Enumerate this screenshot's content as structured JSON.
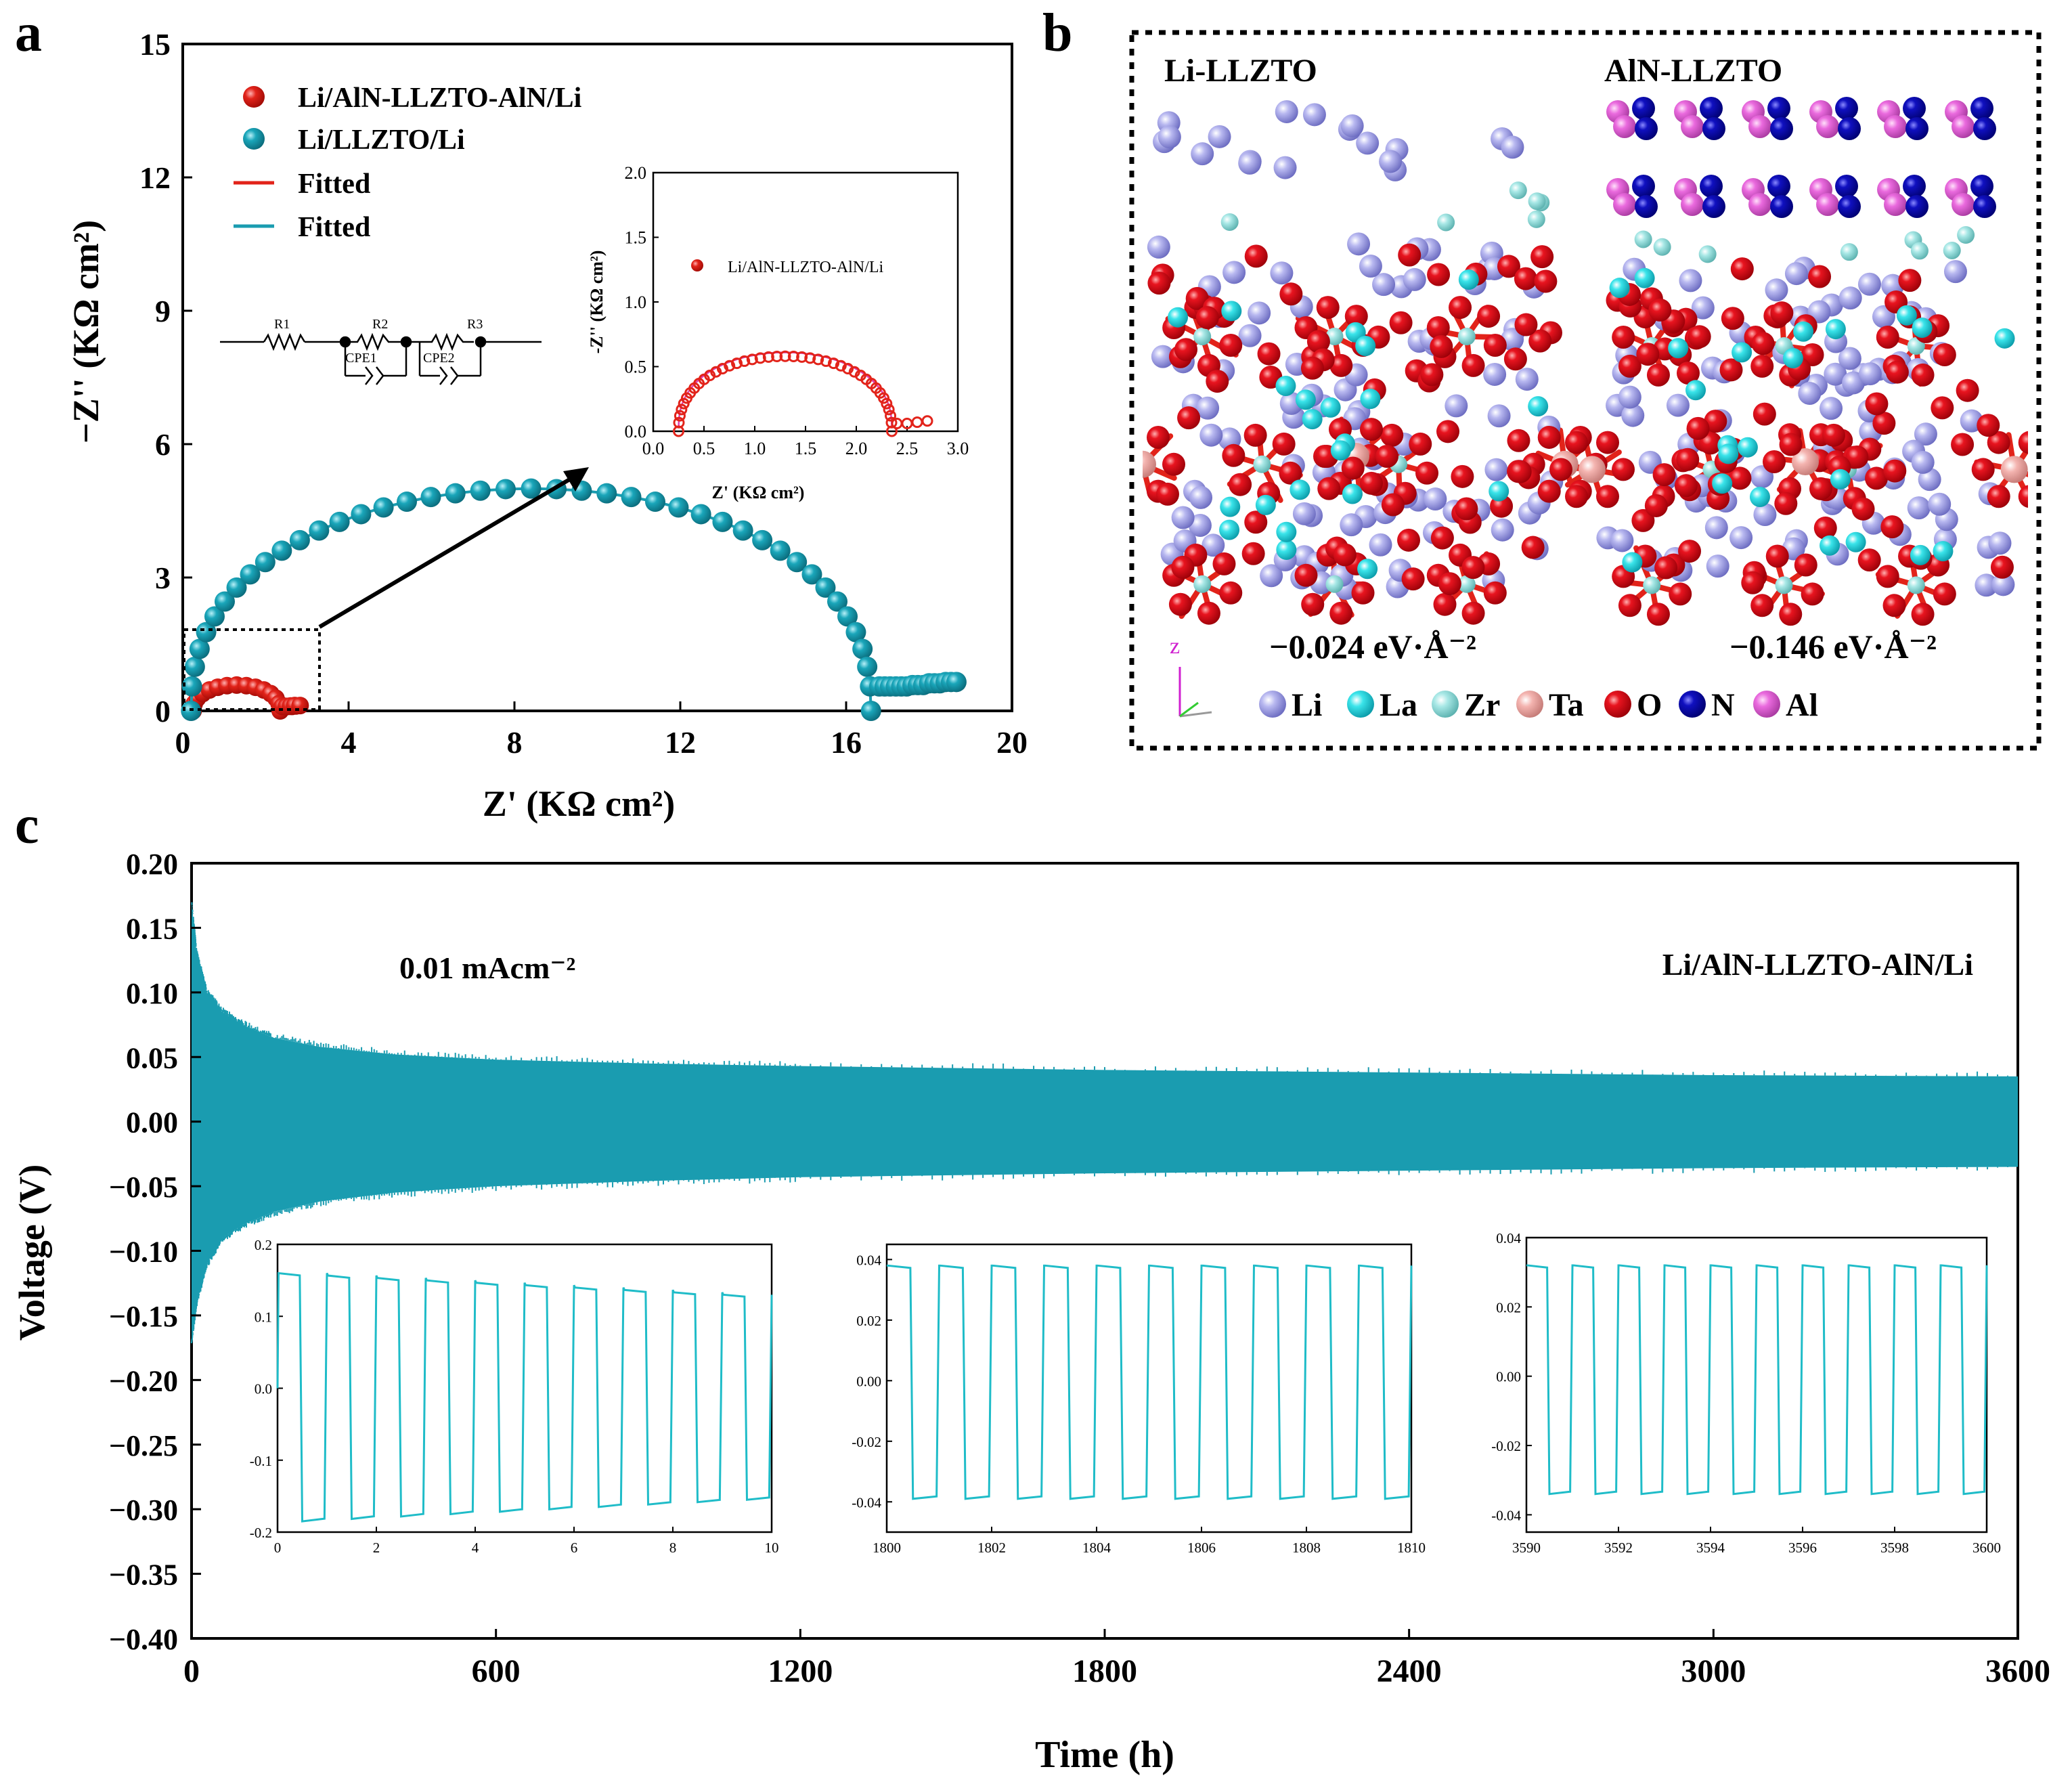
{
  "colors": {
    "red": "#e2231a",
    "teal": "#1a9cb0",
    "trace": "#1fbcc8",
    "magenta": "#e040b0",
    "atom_li": "#9a9ae0",
    "atom_la": "#2cd6dc",
    "atom_zr": "#9ee0de",
    "atom_ta": "#f2a8a4",
    "atom_o": "#e1121f",
    "atom_n": "#0a0ab8",
    "atom_al": "#e763d9"
  },
  "chart_data": [
    {
      "id": "a",
      "panel_label": "a",
      "type": "scatter",
      "xlabel": "Z' (KΩ cm²)",
      "ylabel": "−Z'' (KΩ cm²)",
      "xlim": [
        0,
        20
      ],
      "ylim": [
        0,
        15
      ],
      "xticks": [
        "0",
        "4",
        "8",
        "12",
        "16",
        "20"
      ],
      "yticks": [
        "0",
        "3",
        "6",
        "9",
        "12",
        "15"
      ],
      "legend": [
        "Li/AlN-LLZTO-AlN/Li",
        "Li/LLZTO/Li",
        "Fitted",
        "Fitted"
      ],
      "circuit_labels": [
        "R1",
        "R2",
        "R3",
        "CPE1",
        "CPE2"
      ],
      "series": [
        {
          "name": "Li/AlN-LLZTO-AlN/Li",
          "color": "#e2231a",
          "semicircle": {
            "z_start": 0.25,
            "z_end": 2.35,
            "peak": 0.58
          },
          "tail": {
            "x": [
              2.4,
              2.5,
              2.6,
              2.7
            ],
            "y": [
              0.1,
              0.1,
              0.11,
              0.12
            ]
          }
        },
        {
          "name": "Li/LLZTO/Li",
          "color": "#1a9cb0",
          "semicircle": {
            "z_start": 0.2,
            "z_end": 16.6,
            "peak": 5.0
          },
          "tail": {
            "x": [
              16.8,
              17.2,
              17.6,
              18.0,
              18.4
            ],
            "y": [
              0.55,
              0.55,
              0.58,
              0.62,
              0.65
            ]
          }
        }
      ],
      "inset": {
        "xlim": [
          0,
          3.0
        ],
        "ylim": [
          0,
          2.0
        ],
        "xticks": [
          "0.0",
          "0.5",
          "1.0",
          "1.5",
          "2.0",
          "2.5",
          "3.0"
        ],
        "yticks": [
          "0.0",
          "0.5",
          "1.0",
          "1.5",
          "2.0"
        ],
        "xlabel": "Z' (KΩ cm²)",
        "ylabel": "-Z'' (KΩ cm²)",
        "legend": "Li/AlN-LLZTO-AlN/Li"
      }
    },
    {
      "id": "c",
      "panel_label": "c",
      "type": "line",
      "xlabel": "Time  (h)",
      "ylabel": "Voltage (V)",
      "xlim": [
        0,
        3600
      ],
      "ylim": [
        -0.4,
        0.2
      ],
      "xticks": [
        "0",
        "600",
        "1200",
        "1800",
        "2400",
        "3000",
        "3600"
      ],
      "yticks": [
        "0.20",
        "0.15",
        "0.10",
        "0.05",
        "0.00",
        "−0.05",
        "−0.10",
        "−0.15",
        "−0.20",
        "−0.25",
        "−0.30",
        "−0.35",
        "−0.40"
      ],
      "annotation": "0.01 mAcm⁻²",
      "label": "Li/AlN-LLZTO-AlN/Li",
      "envelope": {
        "t": [
          0,
          10,
          30,
          60,
          100,
          160,
          250,
          400,
          600,
          900,
          1200,
          1800,
          2400,
          3000,
          3600
        ],
        "upper": [
          0.17,
          0.13,
          0.1,
          0.085,
          0.075,
          0.065,
          0.058,
          0.052,
          0.048,
          0.045,
          0.043,
          0.04,
          0.038,
          0.036,
          0.035
        ],
        "lower": [
          -0.17,
          -0.14,
          -0.11,
          -0.09,
          -0.08,
          -0.07,
          -0.062,
          -0.055,
          -0.05,
          -0.046,
          -0.043,
          -0.04,
          -0.038,
          -0.036,
          -0.035
        ]
      },
      "insets": [
        {
          "xlim": [
            0,
            10
          ],
          "ylim": [
            -0.2,
            0.2
          ],
          "xticks": [
            "0",
            "2",
            "4",
            "6",
            "8",
            "10"
          ],
          "yticks": [
            "0.2",
            "0.1",
            "0.0",
            "-0.1",
            "-0.2"
          ],
          "cycle_start": 0,
          "period": 1.0,
          "high_start": 0.16,
          "high_end": 0.13,
          "low_start": -0.185,
          "low_end": -0.155
        },
        {
          "xlim": [
            1800,
            1810
          ],
          "ylim": [
            -0.05,
            0.045
          ],
          "xticks": [
            "1800",
            "1802",
            "1804",
            "1806",
            "1808",
            "1810"
          ],
          "yticks": [
            "0.04",
            "0.02",
            "0.00",
            "-0.02",
            "-0.04"
          ],
          "cycle_start": 1800,
          "period": 1.0,
          "high_start": 0.038,
          "high_end": 0.038,
          "low_start": -0.039,
          "low_end": -0.039
        },
        {
          "xlim": [
            3590,
            3600
          ],
          "ylim": [
            -0.045,
            0.04
          ],
          "xticks": [
            "3590",
            "3592",
            "3594",
            "3596",
            "3598",
            "3600"
          ],
          "yticks": [
            "0.04",
            "0.02",
            "0.00",
            "-0.02",
            "-0.04"
          ],
          "cycle_start": 3590,
          "period": 1.0,
          "high_start": 0.032,
          "high_end": 0.032,
          "low_start": -0.034,
          "low_end": -0.034
        }
      ]
    }
  ],
  "panel_b": {
    "panel_label": "b",
    "left_title": "Li-LLZTO",
    "right_title": "AlN-LLZTO",
    "left_energy": "−0.024 eV·Å⁻²",
    "right_energy": "−0.146 eV·Å⁻²",
    "axis_label": "z",
    "legend": [
      {
        "label": "Li",
        "color_key": "atom_li"
      },
      {
        "label": "La",
        "color_key": "atom_la"
      },
      {
        "label": "Zr",
        "color_key": "atom_zr"
      },
      {
        "label": "Ta",
        "color_key": "atom_ta"
      },
      {
        "label": "O",
        "color_key": "atom_o"
      },
      {
        "label": "N",
        "color_key": "atom_n"
      },
      {
        "label": "Al",
        "color_key": "atom_al"
      }
    ]
  }
}
